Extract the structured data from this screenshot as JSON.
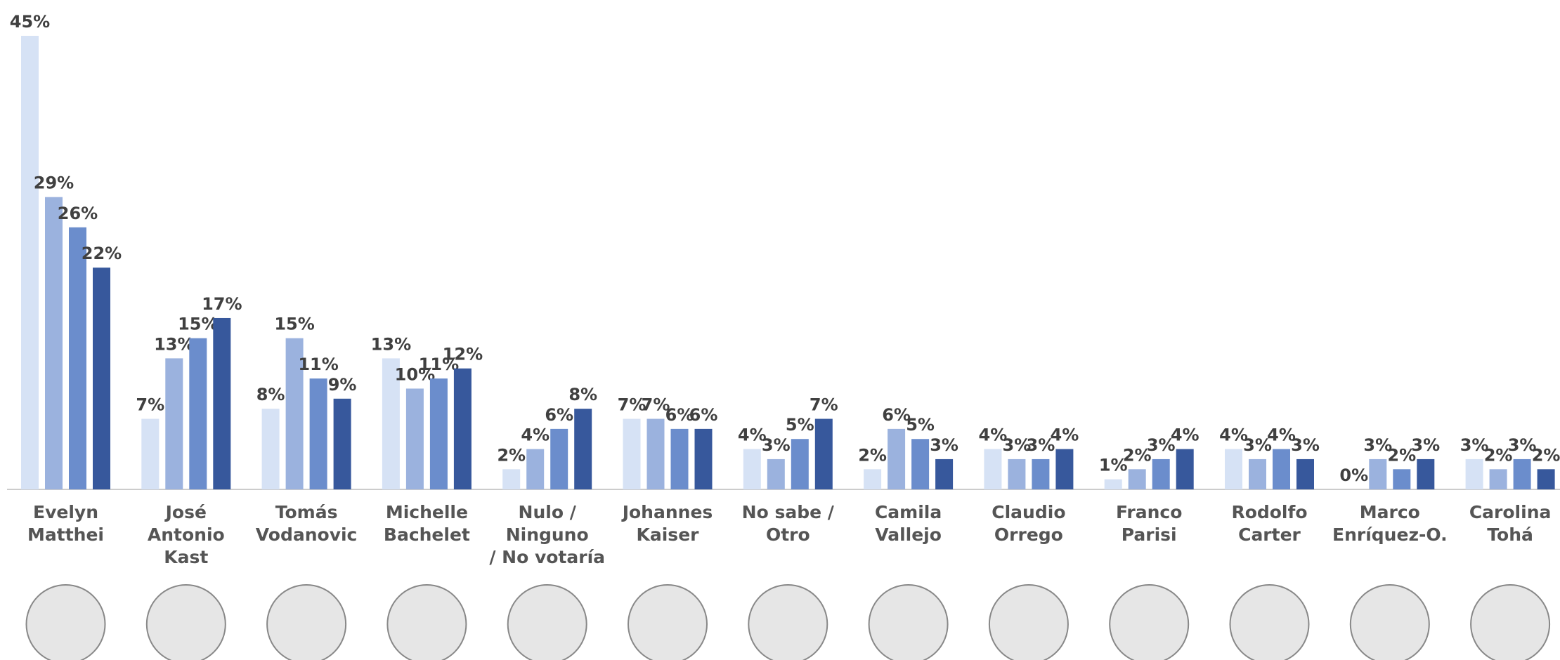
{
  "chart_data": {
    "type": "bar",
    "categories": [
      "Evelyn\nMatthei",
      "José\nAntonio\nKast",
      "Tomás\nVodanovic",
      "Michelle\nBachelet",
      "Nulo /\nNinguno\n/ No votaría",
      "Johannes\nKaiser",
      "No sabe /\nOtro",
      "Camila\nVallejo",
      "Claudio\nOrrego",
      "Franco\nParisi",
      "Rodolfo\nCarter",
      "Marco\nEnríquez-O.",
      "Carolina\nTohá"
    ],
    "series": [
      {
        "color": "#d6e2f5",
        "values": [
          45,
          7,
          8,
          13,
          2,
          7,
          4,
          2,
          4,
          1,
          4,
          0,
          3
        ],
        "value_labels": [
          "45%",
          "7%",
          "8%",
          "13%",
          "2%",
          "7%",
          "4%",
          "2%",
          "4%",
          "1%",
          "4%",
          "0%",
          "3%"
        ]
      },
      {
        "color": "#9bb2de",
        "values": [
          29,
          13,
          15,
          10,
          4,
          7,
          3,
          6,
          3,
          2,
          3,
          3,
          2
        ],
        "value_labels": [
          "29%",
          "13%",
          "15%",
          "10%",
          "4%",
          "7%",
          "3%",
          "6%",
          "3%",
          "2%",
          "3%",
          "3%",
          "2%"
        ]
      },
      {
        "color": "#6b8dcc",
        "values": [
          26,
          15,
          11,
          11,
          6,
          6,
          5,
          5,
          3,
          3,
          4,
          2,
          3
        ],
        "value_labels": [
          "26%",
          "15%",
          "11%",
          "11%",
          "6%",
          "6%",
          "5%",
          "5%",
          "3%",
          "3%",
          "4%",
          "2%",
          "3%"
        ]
      },
      {
        "color": "#37589c",
        "values": [
          22,
          17,
          9,
          12,
          8,
          6,
          7,
          3,
          4,
          4,
          3,
          3,
          2
        ],
        "value_labels": [
          "22%",
          "17%",
          "9%",
          "12%",
          "8%",
          "6%",
          "7%",
          "3%",
          "4%",
          "4%",
          "3%",
          "3%",
          "2%"
        ]
      }
    ]
  }
}
